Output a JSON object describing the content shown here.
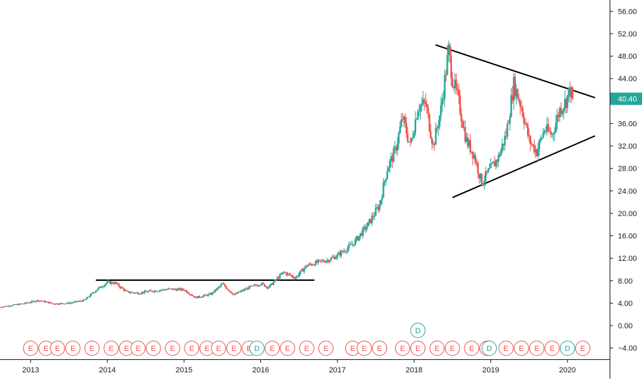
{
  "chart_data": {
    "type": "candlestick",
    "title": "",
    "xlabel": "",
    "ylabel": "",
    "x_range": [
      2012.6,
      2020.55
    ],
    "ylim": [
      -6,
      58
    ],
    "y_ticks": [
      -4,
      0,
      4,
      8,
      12,
      16,
      20,
      24,
      28,
      32,
      36,
      40,
      44,
      48,
      52,
      56
    ],
    "y_tick_labels": [
      "−4.00",
      "0.00",
      "4.00",
      "8.00",
      "12.00",
      "16.00",
      "20.00",
      "24.00",
      "28.00",
      "32.00",
      "36.00",
      "40.00",
      "44.00",
      "48.00",
      "52.00",
      "56.00"
    ],
    "x_ticks": [
      2013,
      2014,
      2015,
      2016,
      2017,
      2018,
      2019,
      2020
    ],
    "x_tick_labels": [
      "2013",
      "2014",
      "2015",
      "2016",
      "2017",
      "2018",
      "2019",
      "2020"
    ],
    "grid": false,
    "colors": {
      "up": "#26a69a",
      "down": "#ef5350",
      "line": "#000000",
      "text": "#131722",
      "dividend": "#26a69a",
      "earnings": "#ef5350"
    },
    "last_price": {
      "value": 40.4,
      "label": "40.40"
    },
    "price_path": [
      [
        2012.6,
        3.3
      ],
      [
        2012.9,
        3.9
      ],
      [
        2013.1,
        4.5
      ],
      [
        2013.3,
        3.9
      ],
      [
        2013.5,
        4.0
      ],
      [
        2013.7,
        4.5
      ],
      [
        2013.85,
        6.3
      ],
      [
        2014.0,
        7.7
      ],
      [
        2014.1,
        7.6
      ],
      [
        2014.25,
        6.0
      ],
      [
        2014.4,
        5.8
      ],
      [
        2014.6,
        6.2
      ],
      [
        2014.8,
        6.5
      ],
      [
        2015.0,
        6.4
      ],
      [
        2015.15,
        5.0
      ],
      [
        2015.35,
        5.6
      ],
      [
        2015.5,
        7.4
      ],
      [
        2015.65,
        5.5
      ],
      [
        2015.85,
        6.8
      ],
      [
        2016.0,
        7.5
      ],
      [
        2016.1,
        6.8
      ],
      [
        2016.2,
        8.2
      ],
      [
        2016.3,
        9.5
      ],
      [
        2016.45,
        8.5
      ],
      [
        2016.6,
        10.7
      ],
      [
        2016.75,
        11.3
      ],
      [
        2016.9,
        11.8
      ],
      [
        2017.0,
        12.5
      ],
      [
        2017.2,
        14.5
      ],
      [
        2017.4,
        18.0
      ],
      [
        2017.55,
        21.5
      ],
      [
        2017.65,
        28.0
      ],
      [
        2017.75,
        31.0
      ],
      [
        2017.85,
        37.0
      ],
      [
        2017.95,
        32.0
      ],
      [
        2018.05,
        39.0
      ],
      [
        2018.15,
        39.5
      ],
      [
        2018.25,
        32.0
      ],
      [
        2018.35,
        38.5
      ],
      [
        2018.45,
        49.0
      ],
      [
        2018.5,
        44.0
      ],
      [
        2018.58,
        40.0
      ],
      [
        2018.68,
        33.0
      ],
      [
        2018.78,
        30.5
      ],
      [
        2018.88,
        25.5
      ],
      [
        2018.98,
        27.5
      ],
      [
        2019.1,
        30.0
      ],
      [
        2019.2,
        34.0
      ],
      [
        2019.3,
        43.0
      ],
      [
        2019.4,
        39.0
      ],
      [
        2019.5,
        33.0
      ],
      [
        2019.6,
        31.0
      ],
      [
        2019.7,
        35.0
      ],
      [
        2019.8,
        34.0
      ],
      [
        2019.9,
        38.5
      ],
      [
        2019.98,
        40.0
      ],
      [
        2020.03,
        42.0
      ],
      [
        2020.07,
        40.4
      ]
    ],
    "trendlines": [
      {
        "x1": 2013.85,
        "y1": 8.1,
        "x2": 2016.7,
        "y2": 8.1
      },
      {
        "x1": 2018.28,
        "y1": 50.0,
        "x2": 2020.36,
        "y2": 40.6
      },
      {
        "x1": 2018.5,
        "y1": 22.8,
        "x2": 2020.36,
        "y2": 33.8
      }
    ],
    "events": {
      "earnings": [
        2013.0,
        2013.2,
        2013.35,
        2013.55,
        2013.8,
        2014.05,
        2014.25,
        2014.4,
        2014.6,
        2014.85,
        2015.1,
        2015.3,
        2015.45,
        2015.65,
        2015.85,
        2016.15,
        2016.35,
        2016.6,
        2016.85,
        2017.2,
        2017.35,
        2017.55,
        2017.85,
        2018.05,
        2018.3,
        2018.5,
        2018.75,
        2018.95,
        2019.2,
        2019.4,
        2019.6,
        2019.8,
        2020.2
      ],
      "dividends": [
        2015.95,
        2018.98,
        2020.0
      ],
      "dividend_highlight": 2018.05,
      "earnings_label": "E",
      "dividend_label": "D"
    }
  }
}
